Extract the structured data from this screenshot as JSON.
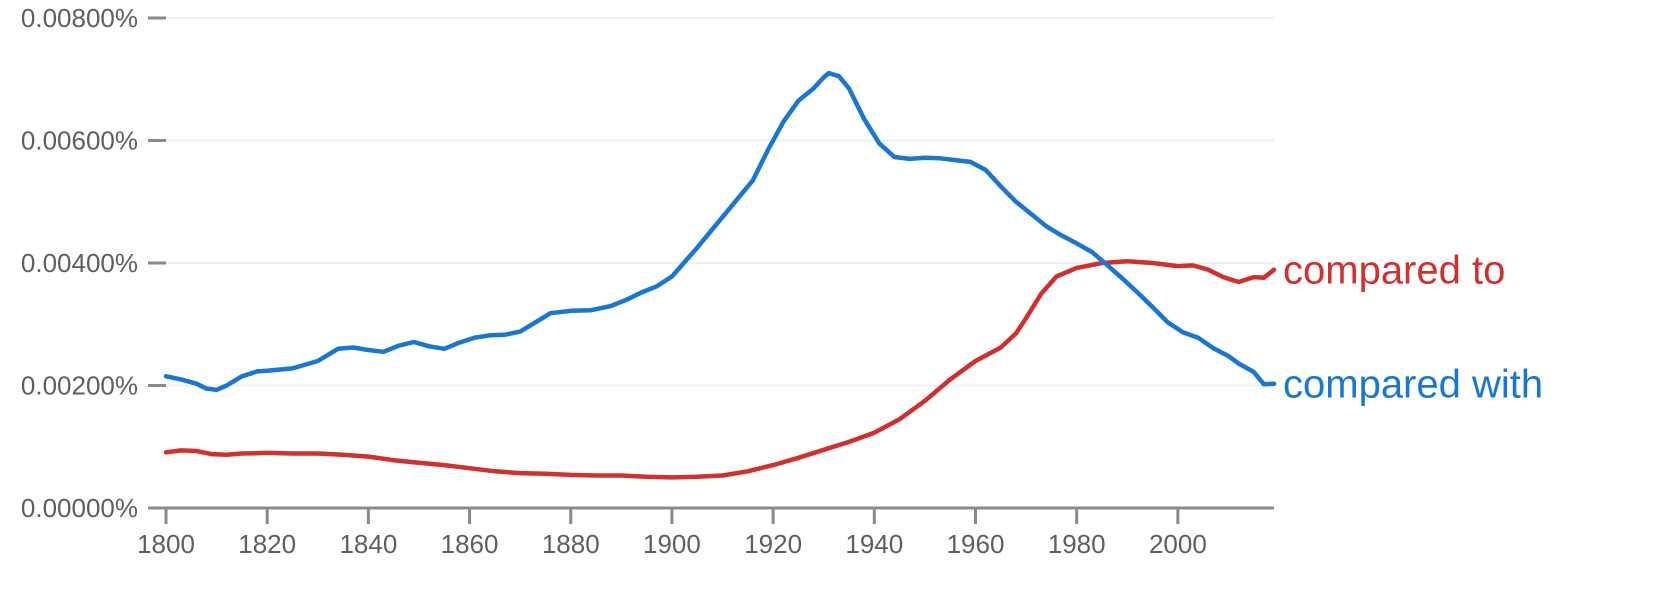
{
  "chart_data": {
    "type": "line",
    "title": "",
    "xlabel": "",
    "ylabel": "",
    "x_range": [
      1800,
      2019
    ],
    "ylim": [
      0,
      0.008
    ],
    "x_ticks": [
      {
        "value": 1800,
        "label": "1800"
      },
      {
        "value": 1820,
        "label": "1820"
      },
      {
        "value": 1840,
        "label": "1840"
      },
      {
        "value": 1860,
        "label": "1860"
      },
      {
        "value": 1880,
        "label": "1880"
      },
      {
        "value": 1900,
        "label": "1900"
      },
      {
        "value": 1920,
        "label": "1920"
      },
      {
        "value": 1940,
        "label": "1940"
      },
      {
        "value": 1960,
        "label": "1960"
      },
      {
        "value": 1980,
        "label": "1980"
      },
      {
        "value": 2000,
        "label": "2000"
      }
    ],
    "y_ticks": [
      {
        "value": 0,
        "label": "0.00000%"
      },
      {
        "value": 0.002,
        "label": "0.00200%"
      },
      {
        "value": 0.004,
        "label": "0.00400%"
      },
      {
        "value": 0.006,
        "label": "0.00600%"
      },
      {
        "value": 0.008,
        "label": "0.00800%"
      }
    ],
    "grid": true,
    "legend": "inline labels at right end of lines",
    "series": [
      {
        "name": "compared to",
        "color": "#d32f2f",
        "points": [
          [
            1800,
            0.00091
          ],
          [
            1803,
            0.00094
          ],
          [
            1806,
            0.00093
          ],
          [
            1809,
            0.00088
          ],
          [
            1812,
            0.00087
          ],
          [
            1815,
            0.00089
          ],
          [
            1820,
            0.0009
          ],
          [
            1825,
            0.00089
          ],
          [
            1830,
            0.00089
          ],
          [
            1835,
            0.00087
          ],
          [
            1840,
            0.00084
          ],
          [
            1845,
            0.00078
          ],
          [
            1850,
            0.00074
          ],
          [
            1855,
            0.0007
          ],
          [
            1860,
            0.00065
          ],
          [
            1865,
            0.0006
          ],
          [
            1870,
            0.00057
          ],
          [
            1875,
            0.00056
          ],
          [
            1880,
            0.00054
          ],
          [
            1885,
            0.00053
          ],
          [
            1890,
            0.00053
          ],
          [
            1895,
            0.00051
          ],
          [
            1900,
            0.0005
          ],
          [
            1905,
            0.00051
          ],
          [
            1910,
            0.00053
          ],
          [
            1915,
            0.0006
          ],
          [
            1920,
            0.0007
          ],
          [
            1925,
            0.00082
          ],
          [
            1930,
            0.00095
          ],
          [
            1935,
            0.00108
          ],
          [
            1940,
            0.00123
          ],
          [
            1945,
            0.00145
          ],
          [
            1950,
            0.00175
          ],
          [
            1955,
            0.0021
          ],
          [
            1960,
            0.0024
          ],
          [
            1965,
            0.00262
          ],
          [
            1968,
            0.00285
          ],
          [
            1970,
            0.0031
          ],
          [
            1973,
            0.0035
          ],
          [
            1976,
            0.00378
          ],
          [
            1980,
            0.00392
          ],
          [
            1985,
            0.004
          ],
          [
            1990,
            0.00403
          ],
          [
            1995,
            0.004
          ],
          [
            2000,
            0.00395
          ],
          [
            2003,
            0.00396
          ],
          [
            2006,
            0.00389
          ],
          [
            2009,
            0.00377
          ],
          [
            2012,
            0.00369
          ],
          [
            2015,
            0.00377
          ],
          [
            2017,
            0.00376
          ],
          [
            2019,
            0.00389
          ]
        ]
      },
      {
        "name": "compared with",
        "color": "#1976d2",
        "points": [
          [
            1800,
            0.00215
          ],
          [
            1803,
            0.0021
          ],
          [
            1806,
            0.00203
          ],
          [
            1808,
            0.00195
          ],
          [
            1810,
            0.00193
          ],
          [
            1812,
            0.002
          ],
          [
            1815,
            0.00215
          ],
          [
            1818,
            0.00223
          ],
          [
            1820,
            0.00224
          ],
          [
            1825,
            0.00228
          ],
          [
            1830,
            0.0024
          ],
          [
            1834,
            0.0026
          ],
          [
            1837,
            0.00262
          ],
          [
            1840,
            0.00258
          ],
          [
            1843,
            0.00255
          ],
          [
            1846,
            0.00265
          ],
          [
            1849,
            0.00271
          ],
          [
            1852,
            0.00264
          ],
          [
            1855,
            0.0026
          ],
          [
            1858,
            0.0027
          ],
          [
            1861,
            0.00278
          ],
          [
            1864,
            0.00282
          ],
          [
            1867,
            0.00283
          ],
          [
            1870,
            0.00288
          ],
          [
            1873,
            0.00303
          ],
          [
            1876,
            0.00318
          ],
          [
            1880,
            0.00322
          ],
          [
            1884,
            0.00323
          ],
          [
            1888,
            0.0033
          ],
          [
            1891,
            0.0034
          ],
          [
            1894,
            0.00352
          ],
          [
            1897,
            0.00362
          ],
          [
            1900,
            0.00378
          ],
          [
            1905,
            0.00425
          ],
          [
            1910,
            0.00475
          ],
          [
            1913,
            0.00505
          ],
          [
            1916,
            0.00535
          ],
          [
            1919,
            0.00585
          ],
          [
            1922,
            0.0063
          ],
          [
            1925,
            0.00665
          ],
          [
            1928,
            0.00685
          ],
          [
            1930,
            0.00703
          ],
          [
            1931,
            0.0071
          ],
          [
            1933,
            0.00705
          ],
          [
            1935,
            0.00685
          ],
          [
            1938,
            0.00635
          ],
          [
            1941,
            0.00595
          ],
          [
            1944,
            0.00573
          ],
          [
            1947,
            0.0057
          ],
          [
            1950,
            0.00572
          ],
          [
            1953,
            0.00571
          ],
          [
            1956,
            0.00568
          ],
          [
            1959,
            0.00565
          ],
          [
            1962,
            0.00552
          ],
          [
            1965,
            0.00525
          ],
          [
            1968,
            0.005
          ],
          [
            1971,
            0.0048
          ],
          [
            1974,
            0.0046
          ],
          [
            1977,
            0.00445
          ],
          [
            1980,
            0.00432
          ],
          [
            1983,
            0.00418
          ],
          [
            1986,
            0.00397
          ],
          [
            1989,
            0.00375
          ],
          [
            1992,
            0.00352
          ],
          [
            1995,
            0.00328
          ],
          [
            1998,
            0.00303
          ],
          [
            2001,
            0.00287
          ],
          [
            2004,
            0.00278
          ],
          [
            2007,
            0.00261
          ],
          [
            2010,
            0.00248
          ],
          [
            2012,
            0.00236
          ],
          [
            2015,
            0.00222
          ],
          [
            2017,
            0.00202
          ],
          [
            2019,
            0.00203
          ]
        ]
      }
    ]
  }
}
